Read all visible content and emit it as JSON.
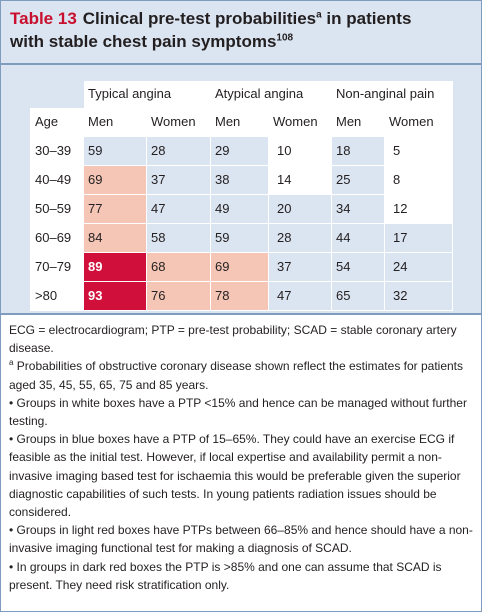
{
  "title": {
    "label": "Table 13",
    "line1_text": "Clinical pre-test probabilities",
    "line1_sup": "a",
    "line1_after": " in patients",
    "line2_text": "with stable chest pain symptoms",
    "line2_sup": "108"
  },
  "table": {
    "groups": [
      "Typical angina",
      "Atypical angina",
      "Non-anginal pain"
    ],
    "columns": [
      "Age",
      "Men",
      "Women",
      "Men",
      "Women",
      "Men",
      "Women"
    ],
    "rows": [
      {
        "age": "30–39",
        "cells": [
          {
            "value": "59",
            "band": "blue"
          },
          {
            "value": "28",
            "band": "blue"
          },
          {
            "value": "29",
            "band": "blue"
          },
          {
            "value": "10",
            "band": "white"
          },
          {
            "value": "18",
            "band": "blue"
          },
          {
            "value": "5",
            "band": "white"
          }
        ]
      },
      {
        "age": "40–49",
        "cells": [
          {
            "value": "69",
            "band": "lightred"
          },
          {
            "value": "37",
            "band": "blue"
          },
          {
            "value": "38",
            "band": "blue"
          },
          {
            "value": "14",
            "band": "white"
          },
          {
            "value": "25",
            "band": "blue"
          },
          {
            "value": "8",
            "band": "white"
          }
        ]
      },
      {
        "age": "50–59",
        "cells": [
          {
            "value": "77",
            "band": "lightred"
          },
          {
            "value": "47",
            "band": "blue"
          },
          {
            "value": "49",
            "band": "blue"
          },
          {
            "value": "20",
            "band": "blue"
          },
          {
            "value": "34",
            "band": "blue"
          },
          {
            "value": "12",
            "band": "white"
          }
        ]
      },
      {
        "age": "60–69",
        "cells": [
          {
            "value": "84",
            "band": "lightred"
          },
          {
            "value": "58",
            "band": "blue"
          },
          {
            "value": "59",
            "band": "blue"
          },
          {
            "value": "28",
            "band": "blue"
          },
          {
            "value": "44",
            "band": "blue"
          },
          {
            "value": "17",
            "band": "blue"
          }
        ]
      },
      {
        "age": "70–79",
        "cells": [
          {
            "value": "89",
            "band": "darkred"
          },
          {
            "value": "68",
            "band": "lightred"
          },
          {
            "value": "69",
            "band": "lightred"
          },
          {
            "value": "37",
            "band": "blue"
          },
          {
            "value": "54",
            "band": "blue"
          },
          {
            "value": "24",
            "band": "blue"
          }
        ]
      },
      {
        "age": ">80",
        "cells": [
          {
            "value": "93",
            "band": "darkred"
          },
          {
            "value": "76",
            "band": "lightred"
          },
          {
            "value": "78",
            "band": "lightred"
          },
          {
            "value": "47",
            "band": "blue"
          },
          {
            "value": "65",
            "band": "blue"
          },
          {
            "value": "32",
            "band": "blue"
          }
        ]
      }
    ]
  },
  "footnotes": {
    "abbrev": "ECG = electrocardiogram; PTP = pre-test probability; SCAD = stable coronary artery disease.",
    "note_a_sup": "a",
    "note_a": "Probabilities of obstructive coronary disease shown reflect the estimates for patients aged 35, 45, 55, 65, 75 and 85 years.",
    "bullets": [
      "• Groups in white boxes have a PTP <15% and hence can be managed without further testing.",
      "• Groups in blue boxes have a PTP of 15–65%. They could have an exercise ECG if feasible as the initial test. However, if local expertise and availability permit a non-invasive imaging based test for ischaemia this would be preferable given the superior diagnostic capabilities of such tests. In young patients radiation issues should be considered.",
      "• Groups in light red boxes have PTPs between 66–85% and hence should have a non-invasive imaging functional test for making a diagnosis of SCAD.",
      "• In groups in dark red boxes the PTP is >85% and one can assume that SCAD is present. They need risk stratification only."
    ]
  },
  "colors": {
    "panel_blue": "#dbe4f1",
    "frame_border": "#7f9cc0",
    "label_red": "#c8102e",
    "white": "#ffffff",
    "light_red": "#f5c6b6",
    "dark_red": "#d0103a"
  }
}
